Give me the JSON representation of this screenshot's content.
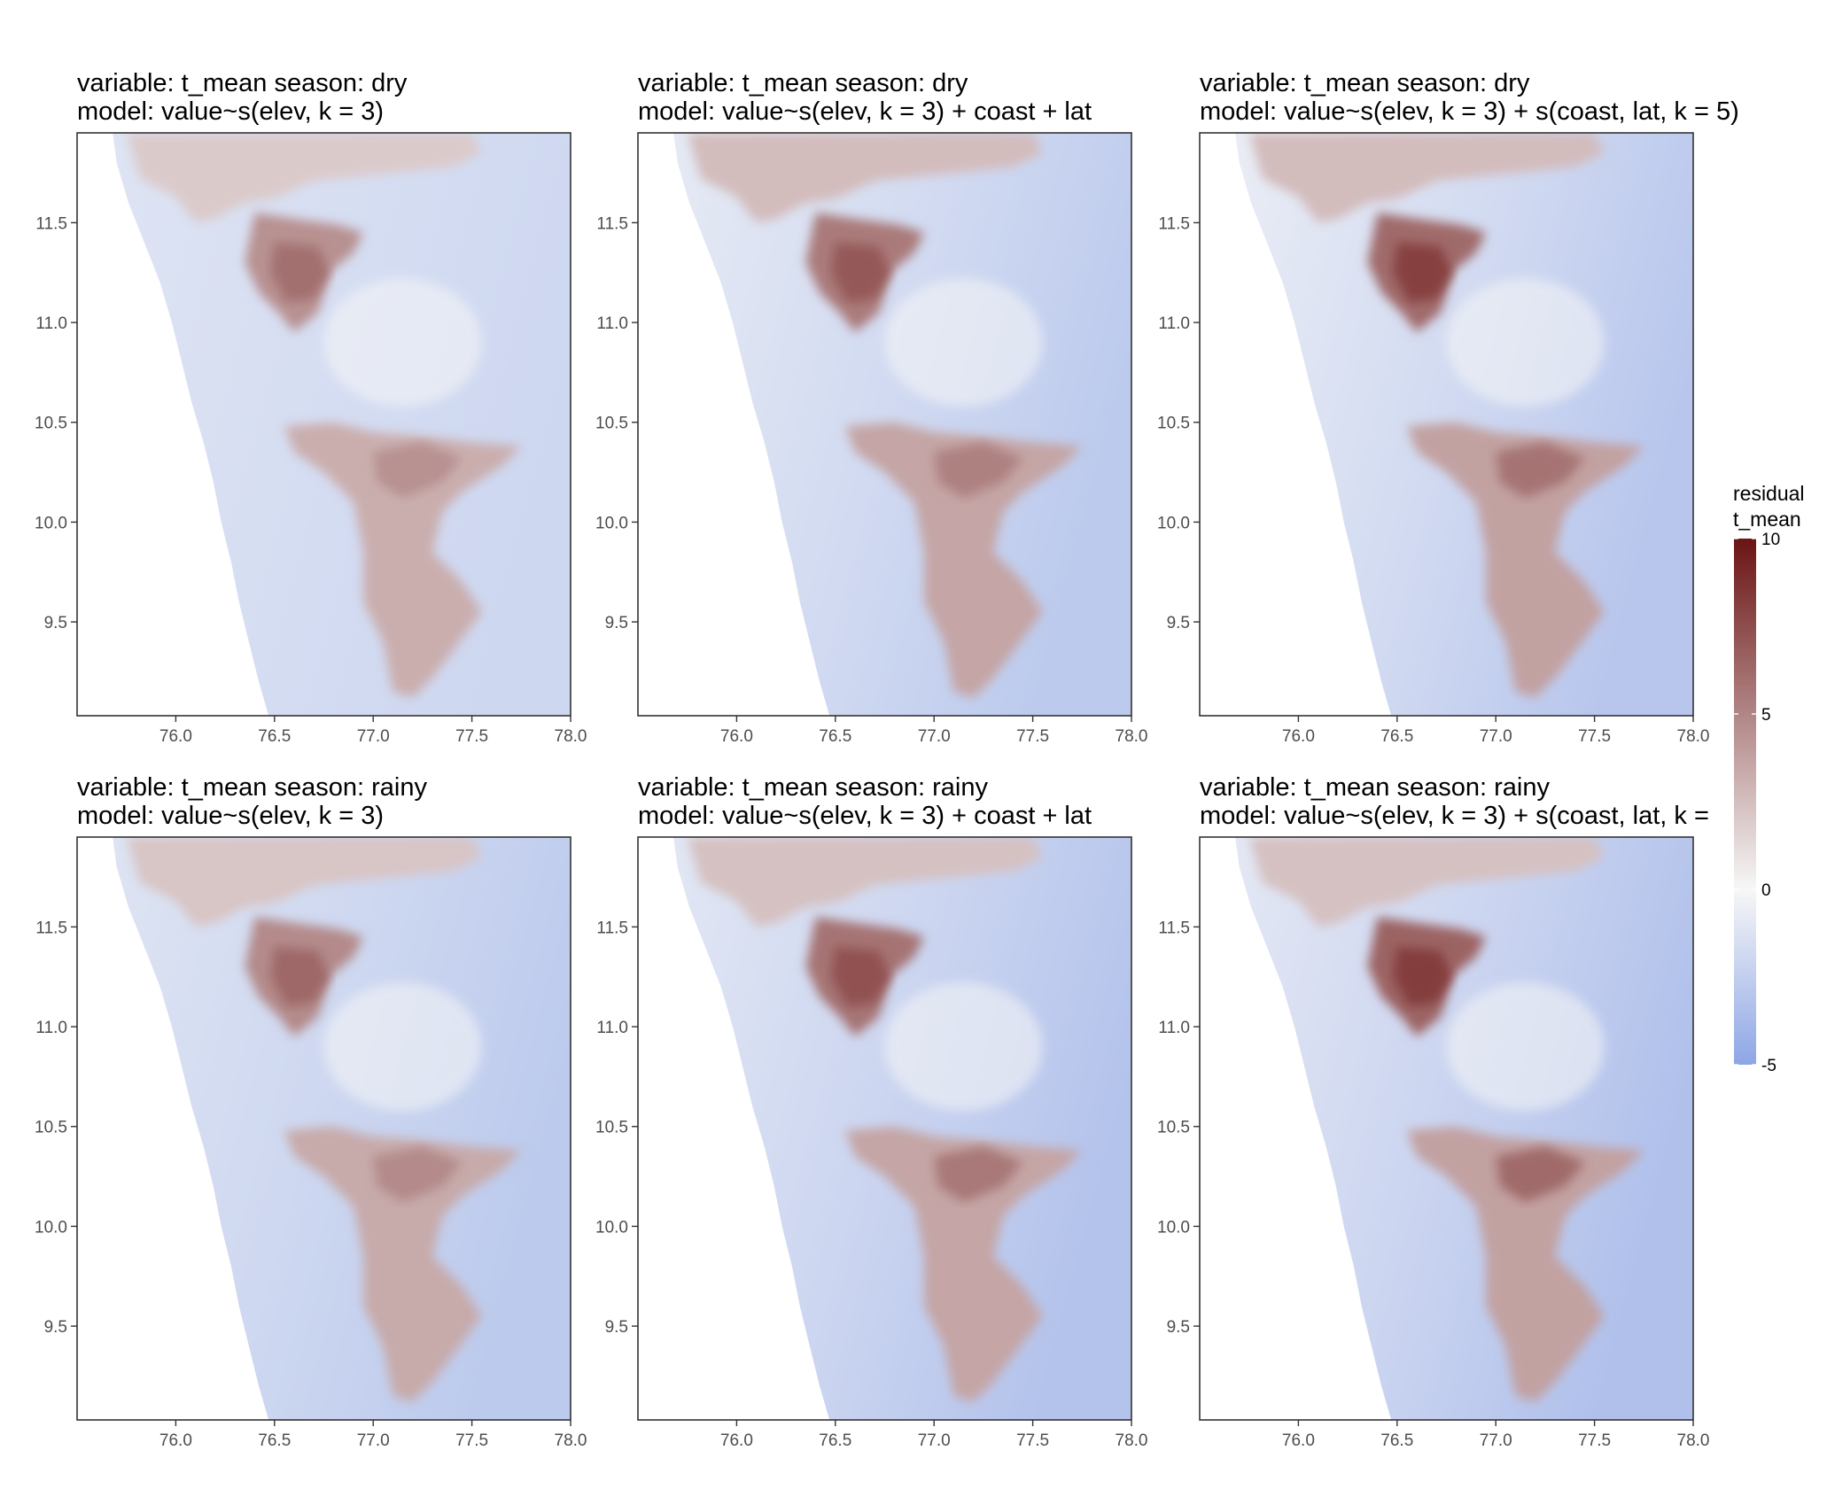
{
  "colors": {
    "low": "#8ea6e6",
    "mid": "#f7f7f7",
    "high": "#6b1414",
    "panel_border": "#333333",
    "tick_text": "#4d4d4d"
  },
  "chart_data": {
    "type": "heatmap",
    "layout": {
      "rows": 2,
      "cols": 3
    },
    "x_axis": {
      "range": [
        75.5,
        78.0
      ],
      "ticks": [
        76.0,
        76.5,
        77.0,
        77.5,
        78.0
      ],
      "tick_labels": [
        "76.0",
        "76.5",
        "77.0",
        "77.5",
        "78.0"
      ]
    },
    "y_axis": {
      "range": [
        9.03,
        11.95
      ],
      "ticks": [
        9.5,
        10.0,
        10.5,
        11.0,
        11.5
      ],
      "tick_labels": [
        "9.5",
        "10.0",
        "10.5",
        "11.0",
        "11.5"
      ]
    },
    "legend": {
      "title_line1": "residual",
      "title_line2": "t_mean",
      "range": [
        -5,
        10
      ],
      "midpoint": 0,
      "ticks": [
        10,
        5,
        0,
        -5
      ],
      "tick_labels": [
        "10",
        "5",
        "0",
        "-5"
      ],
      "position": "right"
    },
    "panels": [
      {
        "line1": "variable: t_mean season: dry",
        "line2": "model: value~s(elev, k = 3)",
        "season": "dry",
        "model": 1
      },
      {
        "line1": "variable: t_mean season: dry",
        "line2": "model: value~s(elev, k = 3) + coast + lat",
        "season": "dry",
        "model": 2
      },
      {
        "line1": "variable: t_mean season: dry",
        "line2": "model: value~s(elev, k = 3) + s(coast, lat, k = 5)",
        "season": "dry",
        "model": 3
      },
      {
        "line1": "variable: t_mean season: rainy",
        "line2": "model: value~s(elev, k = 3)",
        "season": "rainy",
        "model": 1
      },
      {
        "line1": "variable: t_mean season: rainy",
        "line2": "model: value~s(elev, k = 3) + coast + lat",
        "season": "rainy",
        "model": 2
      },
      {
        "line1": "variable: t_mean season: rainy",
        "line2": "model: value~s(elev, k = 3) + s(coast, lat, k =",
        "season": "rainy",
        "model": 3
      }
    ],
    "regions": {
      "coastline": [
        [
          75.68,
          11.95
        ],
        [
          75.7,
          11.8
        ],
        [
          75.76,
          11.6
        ],
        [
          75.84,
          11.4
        ],
        [
          75.92,
          11.2
        ],
        [
          75.98,
          11.0
        ],
        [
          76.03,
          10.8
        ],
        [
          76.08,
          10.6
        ],
        [
          76.14,
          10.4
        ],
        [
          76.19,
          10.2
        ],
        [
          76.23,
          10.0
        ],
        [
          76.28,
          9.8
        ],
        [
          76.32,
          9.6
        ],
        [
          76.37,
          9.4
        ],
        [
          76.42,
          9.2
        ],
        [
          76.47,
          9.03
        ]
      ],
      "northern_plateau": [
        [
          75.75,
          11.95
        ],
        [
          76.76,
          11.95
        ],
        [
          77.5,
          11.95
        ],
        [
          77.55,
          11.85
        ],
        [
          77.4,
          11.78
        ],
        [
          77.0,
          11.74
        ],
        [
          76.7,
          11.71
        ],
        [
          76.5,
          11.62
        ],
        [
          76.35,
          11.6
        ],
        [
          76.2,
          11.52
        ],
        [
          76.1,
          11.5
        ],
        [
          76.0,
          11.63
        ],
        [
          75.82,
          11.72
        ]
      ],
      "nilgiri_hills": [
        [
          76.4,
          11.55
        ],
        [
          76.6,
          11.52
        ],
        [
          76.82,
          11.49
        ],
        [
          76.95,
          11.45
        ],
        [
          76.9,
          11.35
        ],
        [
          76.78,
          11.25
        ],
        [
          76.72,
          11.05
        ],
        [
          76.6,
          10.95
        ],
        [
          76.52,
          11.05
        ],
        [
          76.42,
          11.15
        ],
        [
          76.35,
          11.3
        ],
        [
          76.38,
          11.45
        ]
      ],
      "southern_ghats": [
        [
          76.55,
          10.48
        ],
        [
          76.8,
          10.5
        ],
        [
          77.0,
          10.45
        ],
        [
          77.25,
          10.43
        ],
        [
          77.5,
          10.4
        ],
        [
          77.75,
          10.38
        ],
        [
          77.65,
          10.28
        ],
        [
          77.45,
          10.15
        ],
        [
          77.35,
          10.05
        ],
        [
          77.3,
          9.85
        ],
        [
          77.45,
          9.7
        ],
        [
          77.55,
          9.55
        ],
        [
          77.4,
          9.35
        ],
        [
          77.3,
          9.22
        ],
        [
          77.2,
          9.12
        ],
        [
          77.1,
          9.15
        ],
        [
          77.05,
          9.4
        ],
        [
          76.95,
          9.6
        ],
        [
          76.95,
          9.85
        ],
        [
          76.9,
          10.1
        ],
        [
          76.75,
          10.25
        ],
        [
          76.6,
          10.35
        ]
      ],
      "northern_peak": [
        [
          76.5,
          11.4
        ],
        [
          76.72,
          11.38
        ],
        [
          76.78,
          11.25
        ],
        [
          76.7,
          11.12
        ],
        [
          76.56,
          11.1
        ],
        [
          76.48,
          11.25
        ]
      ],
      "southern_peak": [
        [
          77.0,
          10.35
        ],
        [
          77.25,
          10.4
        ],
        [
          77.45,
          10.32
        ],
        [
          77.35,
          10.2
        ],
        [
          77.15,
          10.12
        ],
        [
          77.02,
          10.2
        ]
      ]
    },
    "panel_values": [
      {
        "plateau": 2.0,
        "nilgiri": 4.5,
        "nilgiri_peak": 6.0,
        "ghats": 3.2,
        "ghats_peak": 4.5,
        "low_west": -1.2,
        "low_east": -2.0
      },
      {
        "plateau": 2.6,
        "nilgiri": 5.5,
        "nilgiri_peak": 7.0,
        "ghats": 3.6,
        "ghats_peak": 5.2,
        "low_west": -0.8,
        "low_east": -2.8
      },
      {
        "plateau": 2.6,
        "nilgiri": 6.2,
        "nilgiri_peak": 8.0,
        "ghats": 3.8,
        "ghats_peak": 5.8,
        "low_west": -0.6,
        "low_east": -3.0
      },
      {
        "plateau": 2.2,
        "nilgiri": 4.8,
        "nilgiri_peak": 6.3,
        "ghats": 3.4,
        "ghats_peak": 4.8,
        "low_west": -1.2,
        "low_east": -2.8
      },
      {
        "plateau": 2.4,
        "nilgiri": 5.8,
        "nilgiri_peak": 7.3,
        "ghats": 3.6,
        "ghats_peak": 5.6,
        "low_west": -1.0,
        "low_east": -3.2
      },
      {
        "plateau": 2.4,
        "nilgiri": 6.5,
        "nilgiri_peak": 8.2,
        "ghats": 3.8,
        "ghats_peak": 6.2,
        "low_west": -0.9,
        "low_east": -3.4
      }
    ]
  }
}
